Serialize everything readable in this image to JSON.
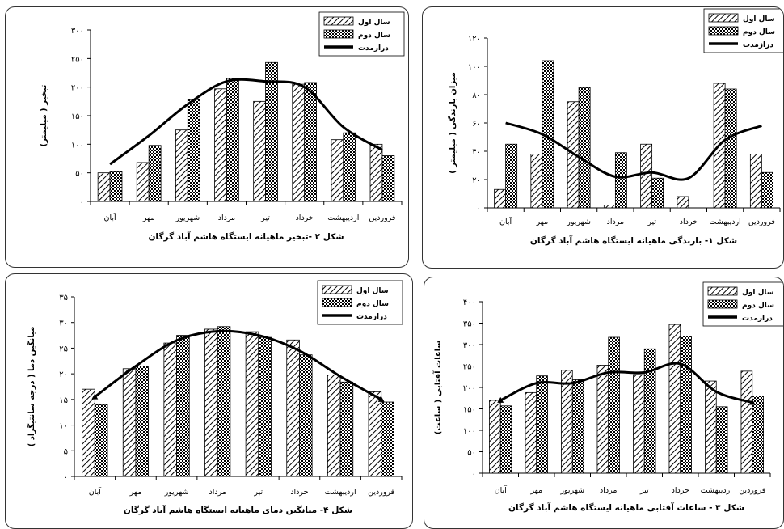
{
  "charts": [
    {
      "type": "bar",
      "caption": "شکل ۲ -تبخیر ماهیانه ایستگاه هاشم آباد گرگان",
      "ylabel": "تبخیر ( میلیمتر)",
      "categories": [
        "فروردین",
        "اردیبهشت",
        "خرداد",
        "تیر",
        "مرداد",
        "شهریور",
        "مهر",
        "آبان"
      ],
      "ylim": [
        0,
        300
      ],
      "yticks": [
        "۰",
        "۵۰",
        "۱۰۰",
        "۱۵۰",
        "۲۰۰",
        "۲۵۰",
        "۳۰۰"
      ],
      "series": [
        {
          "name": "سال اول",
          "style": "hatch",
          "values": [
            100,
            108,
            205,
            175,
            197,
            125,
            68,
            50
          ]
        },
        {
          "name": "سال دوم",
          "style": "check",
          "values": [
            80,
            120,
            208,
            243,
            215,
            178,
            98,
            52
          ]
        },
        {
          "name": "درازمدت",
          "style": "line",
          "values": [
            90,
            130,
            200,
            210,
            210,
            170,
            115,
            65
          ]
        }
      ],
      "legend_position": "top-right"
    },
    {
      "type": "bar",
      "caption": "شکل ۱- بارندگی ماهیانه ایستگاه هاشم آباد گرگان",
      "ylabel": "میزان بارندگی ( میلیمتر )",
      "categories": [
        "فروردین",
        "اردیبهشت",
        "خرداد",
        "تیر",
        "مرداد",
        "شهریور",
        "مهر",
        "آبان"
      ],
      "ylim": [
        0,
        120
      ],
      "yticks": [
        "۰",
        "۲۰",
        "۴۰",
        "۶۰",
        "۸۰",
        "۱۰۰",
        "۱۲۰"
      ],
      "series": [
        {
          "name": "سال اول",
          "style": "hatch",
          "values": [
            38,
            88,
            8,
            45,
            2,
            75,
            38,
            13
          ]
        },
        {
          "name": "سال دوم",
          "style": "check",
          "values": [
            25,
            84,
            0,
            21,
            39,
            85,
            104,
            45
          ]
        },
        {
          "name": "درازمدت",
          "style": "line",
          "values": [
            58,
            48,
            21,
            25,
            22,
            36,
            52,
            60
          ]
        }
      ],
      "legend_position": "top-right"
    },
    {
      "type": "bar",
      "caption": "شکل ۴- میانگین دمای ماهیانه ایستگاه هاشم آباد گرگان",
      "ylabel": "میانگین دما ( درجه سانتیگراد )",
      "categories": [
        "فروردین",
        "اردیبهشت",
        "خرداد",
        "تیر",
        "مرداد",
        "شهریور",
        "مهر",
        "آبان"
      ],
      "ylim": [
        0,
        35
      ],
      "yticks": [
        "۰",
        "۵",
        "۱۰",
        "۱۵",
        "۲۰",
        "۲۵",
        "۳۰",
        "۳۵"
      ],
      "series": [
        {
          "name": "سال اول",
          "style": "hatch",
          "values": [
            16.5,
            19.8,
            26.6,
            28.2,
            28.7,
            26.0,
            21.0,
            17.0
          ]
        },
        {
          "name": "سال دوم",
          "style": "check",
          "values": [
            14.5,
            18.4,
            23.7,
            27.1,
            29.2,
            27.5,
            21.5,
            14.0
          ]
        },
        {
          "name": "درازمدت",
          "style": "line",
          "values": [
            15,
            19.5,
            24.5,
            27.5,
            28.3,
            26.5,
            21.5,
            15.5
          ]
        }
      ],
      "legend_position": "top-right"
    },
    {
      "type": "bar",
      "caption": "شکل ۳ - ساعات آفتابی ماهیانه ایستگاه هاشم آباد گرگان",
      "ylabel": "ساعات آفتابی ( ساعت)",
      "categories": [
        "فروردین",
        "اردیبهشت",
        "خرداد",
        "تیر",
        "مرداد",
        "شهریور",
        "مهر",
        "آبان"
      ],
      "ylim": [
        0,
        400
      ],
      "yticks": [
        "۰",
        "۵۰",
        "۱۰۰",
        "۱۵۰",
        "۲۰۰",
        "۲۵۰",
        "۳۰۰",
        "۳۵۰",
        "۴۰۰"
      ],
      "series": [
        {
          "name": "سال اول",
          "style": "hatch",
          "values": [
            238,
            215,
            347,
            230,
            252,
            240,
            188,
            170
          ]
        },
        {
          "name": "سال دوم",
          "style": "check",
          "values": [
            180,
            155,
            320,
            290,
            317,
            218,
            227,
            157
          ]
        },
        {
          "name": "درازمدت",
          "style": "line",
          "values": [
            165,
            190,
            255,
            235,
            235,
            210,
            210,
            170
          ]
        }
      ],
      "legend_position": "top-right"
    }
  ]
}
